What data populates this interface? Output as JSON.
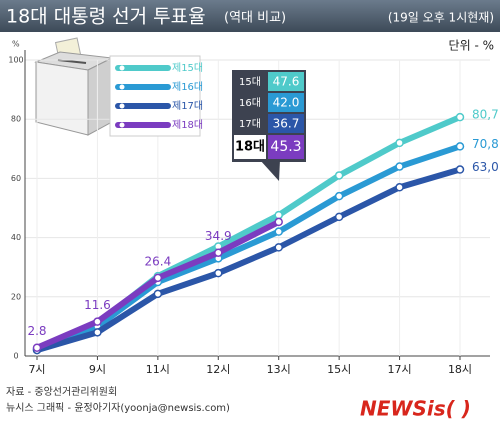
{
  "chart_data": {
    "type": "line",
    "title": "18대 대통령 선거 투표율",
    "subtitle": "(역대 비교)",
    "date_note": "(19일 오후 1시현재)",
    "unit": "단위 - %",
    "y_label": "%",
    "categories": [
      "7시",
      "9시",
      "11시",
      "12시",
      "13시",
      "15시",
      "17시",
      "18시"
    ],
    "series": [
      {
        "name": "제15대",
        "short": "15대",
        "color": "#4fcaca",
        "values": [
          2.5,
          11,
          27,
          37,
          47.6,
          61,
          72,
          80.7
        ],
        "value_labels": [
          null,
          null,
          null,
          null,
          "47.6",
          null,
          null,
          "80,7"
        ]
      },
      {
        "name": "제16대",
        "short": "16대",
        "color": "#2a9ad4",
        "values": [
          2.2,
          10,
          25,
          33,
          42.0,
          54,
          64,
          70.8
        ],
        "value_labels": [
          null,
          null,
          null,
          null,
          "42.0",
          null,
          null,
          "70,8"
        ]
      },
      {
        "name": "제17대",
        "short": "17대",
        "color": "#2b56a8",
        "values": [
          2,
          8,
          21,
          28,
          36.7,
          47,
          57,
          63.0
        ],
        "value_labels": [
          null,
          null,
          null,
          null,
          "36.7",
          null,
          null,
          "63,0"
        ]
      },
      {
        "name": "제18대",
        "short": "18대",
        "color": "#7b3cc0",
        "values": [
          2.8,
          11.6,
          26.4,
          34.9,
          45.3,
          null,
          null,
          null
        ],
        "value_labels": [
          "2.8",
          "11.6",
          "26.4",
          "34.9",
          "45.3",
          null,
          null,
          null
        ]
      }
    ],
    "ylim": [
      0,
      100
    ],
    "yticks": [
      0,
      20,
      40,
      60,
      80,
      100
    ],
    "grid": true,
    "source": "자료 - 중앙선거관리위원회",
    "credit": "뉴시스 그래픽 - 윤정아기자(yoonja@newsis.com)",
    "logo": "NEWSis( )"
  }
}
